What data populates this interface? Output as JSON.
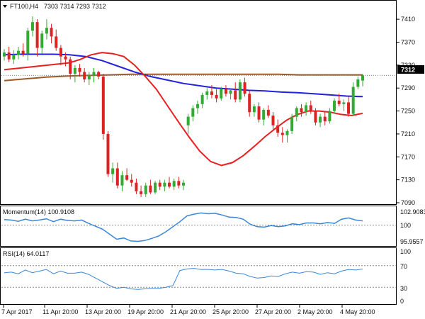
{
  "header": {
    "symbol": "FT100,H4",
    "ohlc": "7303 7314 7293 7312",
    "dropdown_icon": "triangle-down-icon"
  },
  "price_label": "7312",
  "momentum": {
    "title": "Momentum(14) 100.9108",
    "ticks": [
      "102.9083",
      "100",
      "95.9557"
    ]
  },
  "rsi": {
    "title": "RSI(14) 64.0117",
    "ticks": [
      "70",
      "30",
      "100",
      "0"
    ]
  },
  "colors": {
    "bull": "#33aa33",
    "bear": "#dd2222",
    "ma_fast": "#e82020",
    "ma_mid": "#2222dd",
    "ma_slow": "#9b5a2a",
    "indicator": "#3a86d8",
    "price_label_bg": "#000000",
    "grid": "#cccccc",
    "axis": "#000000"
  },
  "chart_data": {
    "type": "candlestick",
    "ylim": [
      7090,
      7425
    ],
    "yticks": [
      7410,
      7370,
      7330,
      7290,
      7250,
      7210,
      7170,
      7130,
      7090
    ],
    "xticks": [
      "7 Apr 2017",
      "11 Apr 20:00",
      "13 Apr 20:00",
      "19 Apr 20:00",
      "21 Apr 20:00",
      "25 Apr 20:00",
      "27 Apr 20:00",
      "2 May 20:00",
      "4 May 20:00"
    ],
    "candles": [
      [
        7345,
        7358,
        7338,
        7352
      ],
      [
        7352,
        7362,
        7335,
        7340
      ],
      [
        7340,
        7356,
        7332,
        7348
      ],
      [
        7348,
        7362,
        7340,
        7355
      ],
      [
        7355,
        7368,
        7345,
        7350
      ],
      [
        7350,
        7395,
        7338,
        7390
      ],
      [
        7390,
        7415,
        7380,
        7405
      ],
      [
        7405,
        7410,
        7345,
        7360
      ],
      [
        7360,
        7390,
        7350,
        7385
      ],
      [
        7385,
        7410,
        7375,
        7395
      ],
      [
        7395,
        7402,
        7368,
        7380
      ],
      [
        7380,
        7392,
        7355,
        7360
      ],
      [
        7360,
        7365,
        7330,
        7345
      ],
      [
        7345,
        7352,
        7328,
        7340
      ],
      [
        7340,
        7345,
        7305,
        7315
      ],
      [
        7315,
        7330,
        7300,
        7325
      ],
      [
        7325,
        7332,
        7310,
        7318
      ],
      [
        7318,
        7325,
        7300,
        7305
      ],
      [
        7305,
        7318,
        7295,
        7312
      ],
      [
        7312,
        7325,
        7300,
        7318
      ],
      [
        7318,
        7320,
        7305,
        7310
      ],
      [
        7310,
        7315,
        7200,
        7210
      ],
      [
        7210,
        7215,
        7135,
        7140
      ],
      [
        7140,
        7160,
        7125,
        7150
      ],
      [
        7150,
        7160,
        7115,
        7120
      ],
      [
        7120,
        7145,
        7110,
        7138
      ],
      [
        7138,
        7150,
        7128,
        7130
      ],
      [
        7130,
        7140,
        7118,
        7125
      ],
      [
        7125,
        7132,
        7105,
        7110
      ],
      [
        7110,
        7120,
        7100,
        7105
      ],
      [
        7105,
        7125,
        7100,
        7120
      ],
      [
        7120,
        7130,
        7105,
        7108
      ],
      [
        7108,
        7128,
        7105,
        7125
      ],
      [
        7125,
        7130,
        7112,
        7118
      ],
      [
        7118,
        7130,
        7110,
        7125
      ],
      [
        7125,
        7135,
        7115,
        7118
      ],
      [
        7118,
        7132,
        7112,
        7128
      ],
      [
        7128,
        7135,
        7115,
        7120
      ],
      [
        7120,
        7130,
        7112,
        7125
      ],
      [
        7225,
        7245,
        7210,
        7240
      ],
      [
        7240,
        7260,
        7232,
        7255
      ],
      [
        7255,
        7268,
        7245,
        7262
      ],
      [
        7262,
        7282,
        7255,
        7278
      ],
      [
        7278,
        7290,
        7270,
        7284
      ],
      [
        7284,
        7295,
        7272,
        7278
      ],
      [
        7278,
        7288,
        7265,
        7272
      ],
      [
        7272,
        7292,
        7268,
        7288
      ],
      [
        7288,
        7295,
        7275,
        7280
      ],
      [
        7280,
        7290,
        7270,
        7286
      ],
      [
        7286,
        7300,
        7265,
        7270
      ],
      [
        7270,
        7305,
        7265,
        7300
      ],
      [
        7300,
        7308,
        7275,
        7280
      ],
      [
        7280,
        7285,
        7240,
        7248
      ],
      [
        7248,
        7262,
        7240,
        7258
      ],
      [
        7258,
        7265,
        7230,
        7235
      ],
      [
        7235,
        7255,
        7225,
        7252
      ],
      [
        7252,
        7260,
        7238,
        7242
      ],
      [
        7242,
        7248,
        7218,
        7225
      ],
      [
        7225,
        7235,
        7205,
        7212
      ],
      [
        7212,
        7222,
        7195,
        7208
      ],
      [
        7208,
        7218,
        7195,
        7215
      ],
      [
        7215,
        7245,
        7210,
        7240
      ],
      [
        7240,
        7258,
        7232,
        7255
      ],
      [
        7255,
        7262,
        7240,
        7248
      ],
      [
        7248,
        7265,
        7242,
        7260
      ],
      [
        7260,
        7268,
        7245,
        7250
      ],
      [
        7250,
        7255,
        7225,
        7230
      ],
      [
        7230,
        7245,
        7222,
        7240
      ],
      [
        7240,
        7250,
        7225,
        7232
      ],
      [
        7232,
        7255,
        7228,
        7250
      ],
      [
        7250,
        7272,
        7245,
        7268
      ],
      [
        7268,
        7280,
        7258,
        7262
      ],
      [
        7262,
        7270,
        7250,
        7265
      ],
      [
        7265,
        7275,
        7240,
        7245
      ],
      [
        7245,
        7300,
        7242,
        7292
      ],
      [
        7292,
        7310,
        7288,
        7305
      ],
      [
        7303,
        7314,
        7293,
        7312
      ]
    ],
    "ma_fast": [
      7322,
      7324,
      7326,
      7328,
      7330,
      7332,
      7334,
      7340,
      7348,
      7352,
      7350,
      7345,
      7330,
      7310,
      7288,
      7260,
      7232,
      7205,
      7180,
      7162,
      7155,
      7160,
      7172,
      7188,
      7205,
      7220,
      7234,
      7244,
      7250,
      7250,
      7248,
      7244,
      7242,
      7246
    ],
    "ma_mid": [
      7348,
      7349,
      7349,
      7349,
      7348,
      7345,
      7338,
      7328,
      7318,
      7310,
      7304,
      7298,
      7294,
      7290,
      7288,
      7286,
      7285,
      7283,
      7282,
      7280,
      7278,
      7276,
      7275
    ],
    "ma_slow": [
      7303,
      7306,
      7309,
      7311,
      7312,
      7313,
      7314,
      7314,
      7314,
      7314,
      7314,
      7314,
      7314,
      7314,
      7313,
      7313,
      7313,
      7313
    ],
    "momentum": [
      101.3,
      101.2,
      100.9,
      101.4,
      101.0,
      101.2,
      101.5,
      100.8,
      101.4,
      101.1,
      101.0,
      101.2,
      100.4,
      99.7,
      99.0,
      97.8,
      96.6,
      96.9,
      96.2,
      96.1,
      96.3,
      96.8,
      97.4,
      98.4,
      99.6,
      100.8,
      102.2,
      102.6,
      102.9,
      102.7,
      102.8,
      102.4,
      101.9,
      101.8,
      101.4,
      100.2,
      99.6,
      99.5,
      99.9,
      99.6,
      99.8,
      100.3,
      100.1,
      100.5,
      100.5,
      100.3,
      100.6,
      100.4,
      101.4,
      101.7,
      101.2,
      101.0
    ],
    "rsi": [
      57,
      58,
      55,
      62,
      57,
      60,
      63,
      55,
      60,
      56,
      56,
      58,
      54,
      47,
      40,
      33,
      28,
      30,
      27,
      26,
      27,
      28,
      28,
      30,
      33,
      61,
      64,
      65,
      63,
      63,
      62,
      63,
      60,
      56,
      55,
      50,
      47,
      48,
      51,
      50,
      55,
      58,
      56,
      59,
      58,
      54,
      57,
      55,
      60,
      63,
      62,
      64
    ]
  }
}
